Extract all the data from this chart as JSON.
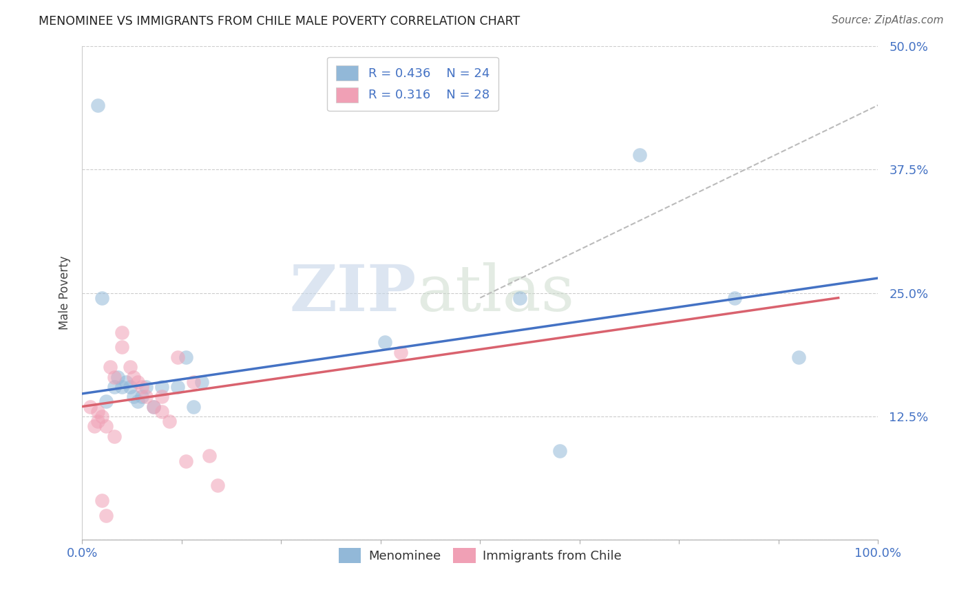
{
  "title": "MENOMINEE VS IMMIGRANTS FROM CHILE MALE POVERTY CORRELATION CHART",
  "source": "Source: ZipAtlas.com",
  "ylabel": "Male Poverty",
  "xlim": [
    0,
    1.0
  ],
  "ylim": [
    0,
    0.5
  ],
  "ytick_positions": [
    0.0,
    0.125,
    0.25,
    0.375,
    0.5
  ],
  "ytick_labels": [
    "",
    "12.5%",
    "25.0%",
    "37.5%",
    "50.0%"
  ],
  "xtick_positions": [
    0.0,
    0.125,
    0.25,
    0.375,
    0.5,
    0.625,
    0.75,
    0.875,
    1.0
  ],
  "xtick_labels_show": {
    "0.0": "0.0%",
    "1.0": "100.0%"
  },
  "legend_r1": "R = 0.436",
  "legend_n1": "N = 24",
  "legend_r2": "R = 0.316",
  "legend_n2": "N = 28",
  "color_blue": "#92b8d8",
  "color_pink": "#f0a0b5",
  "color_blue_line": "#4472c4",
  "color_pink_line": "#d9626e",
  "color_dashed": "#bbbbbb",
  "watermark_zip": "ZIP",
  "watermark_atlas": "atlas",
  "menominee_x": [
    0.02,
    0.025,
    0.03,
    0.04,
    0.045,
    0.05,
    0.055,
    0.06,
    0.065,
    0.07,
    0.075,
    0.08,
    0.09,
    0.1,
    0.12,
    0.13,
    0.14,
    0.15,
    0.38,
    0.55,
    0.6,
    0.7,
    0.82,
    0.9
  ],
  "menominee_y": [
    0.44,
    0.245,
    0.14,
    0.155,
    0.165,
    0.155,
    0.16,
    0.155,
    0.145,
    0.14,
    0.145,
    0.155,
    0.135,
    0.155,
    0.155,
    0.185,
    0.135,
    0.16,
    0.2,
    0.245,
    0.09,
    0.39,
    0.245,
    0.185
  ],
  "chile_x": [
    0.01,
    0.015,
    0.02,
    0.02,
    0.025,
    0.03,
    0.035,
    0.04,
    0.04,
    0.05,
    0.05,
    0.06,
    0.065,
    0.07,
    0.075,
    0.08,
    0.09,
    0.1,
    0.1,
    0.11,
    0.12,
    0.13,
    0.14,
    0.16,
    0.17,
    0.025,
    0.03,
    0.4
  ],
  "chile_y": [
    0.135,
    0.115,
    0.13,
    0.12,
    0.125,
    0.115,
    0.175,
    0.165,
    0.105,
    0.21,
    0.195,
    0.175,
    0.165,
    0.16,
    0.155,
    0.145,
    0.135,
    0.13,
    0.145,
    0.12,
    0.185,
    0.08,
    0.16,
    0.085,
    0.055,
    0.04,
    0.025,
    0.19
  ],
  "blue_trendline_x": [
    0.0,
    1.0
  ],
  "blue_trendline_y": [
    0.148,
    0.265
  ],
  "pink_trendline_x": [
    0.0,
    0.95
  ],
  "pink_trendline_y": [
    0.135,
    0.245
  ],
  "dashed_trendline_x": [
    0.5,
    1.0
  ],
  "dashed_trendline_y": [
    0.245,
    0.44
  ],
  "background_color": "#ffffff",
  "grid_color": "#cccccc",
  "tick_color": "#4472c4",
  "label_color": "#444444",
  "title_color": "#222222",
  "source_color": "#666666"
}
